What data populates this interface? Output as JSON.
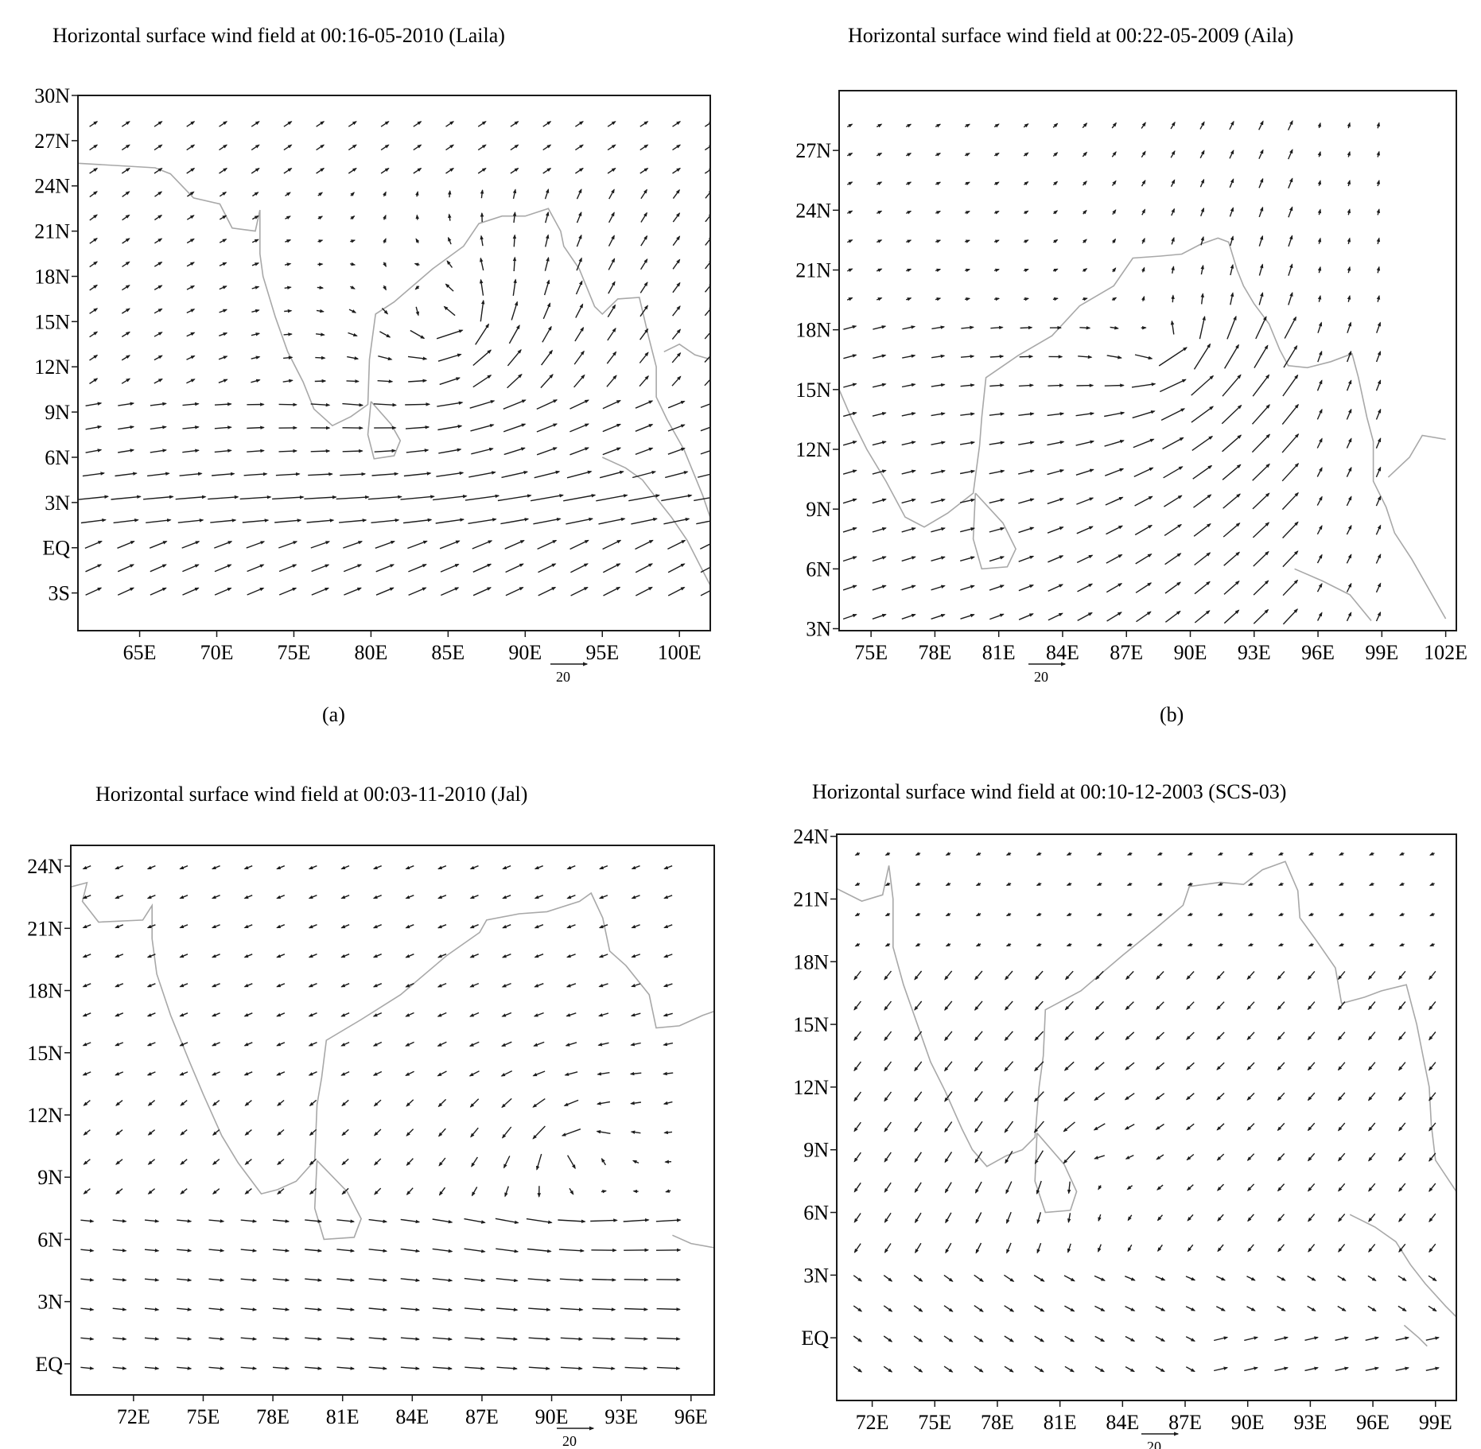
{
  "figure": {
    "panels": [
      {
        "id": "a",
        "title": "Horizontal surface wind field  at 00:16-05-2010 (Laila)",
        "label": "(a)",
        "reference_vector_label": "20"
      },
      {
        "id": "b",
        "title": "Horizontal surface wind field at 00:22-05-2009 (Aila)",
        "label": "(b)",
        "reference_vector_label": "20"
      },
      {
        "id": "c",
        "title": "Horizontal surface wind field at 00:03-11-2010 (Jal)",
        "label": "",
        "reference_vector_label": "20"
      },
      {
        "id": "d",
        "title": "Horizontal surface wind field at 00:10-12-2003 (SCS-03)",
        "label": "",
        "reference_vector_label": "20"
      }
    ]
  },
  "chart_data": [
    {
      "type": "vector_field",
      "title": "Horizontal surface wind field  at 00:16-05-2010 (Laila)",
      "xlim": [
        61,
        102
      ],
      "ylim": [
        -5.5,
        30
      ],
      "x_ticks": [
        {
          "v": 65,
          "label": "65E"
        },
        {
          "v": 70,
          "label": "70E"
        },
        {
          "v": 75,
          "label": "75E"
        },
        {
          "v": 80,
          "label": "80E"
        },
        {
          "v": 85,
          "label": "85E"
        },
        {
          "v": 90,
          "label": "90E"
        },
        {
          "v": 95,
          "label": "95E"
        },
        {
          "v": 100,
          "label": "100E"
        }
      ],
      "y_ticks": [
        {
          "v": 30,
          "label": "30N"
        },
        {
          "v": 27,
          "label": "27N"
        },
        {
          "v": 24,
          "label": "24N"
        },
        {
          "v": 21,
          "label": "21N"
        },
        {
          "v": 18,
          "label": "18N"
        },
        {
          "v": 15,
          "label": "15N"
        },
        {
          "v": 12,
          "label": "12N"
        },
        {
          "v": 9,
          "label": "9N"
        },
        {
          "v": 6,
          "label": "6N"
        },
        {
          "v": 3,
          "label": "3N"
        },
        {
          "v": 0,
          "label": "EQ"
        },
        {
          "v": -3,
          "label": "3S"
        }
      ],
      "grid": false,
      "reference_vector": {
        "magnitude": 20,
        "label": "20"
      },
      "cyclone_center": {
        "lon": 85,
        "lat": 15
      },
      "flow": "south-westerly cross-equatorial flow with cyclonic circulation over Bay of Bengal"
    },
    {
      "type": "vector_field",
      "title": "Horizontal surface wind field at 00:22-05-2009 (Aila)",
      "xlim": [
        73.5,
        102.5
      ],
      "ylim": [
        2.9,
        30
      ],
      "x_ticks": [
        {
          "v": 75,
          "label": "75E"
        },
        {
          "v": 78,
          "label": "78E"
        },
        {
          "v": 81,
          "label": "81E"
        },
        {
          "v": 84,
          "label": "84E"
        },
        {
          "v": 87,
          "label": "87E"
        },
        {
          "v": 90,
          "label": "90E"
        },
        {
          "v": 93,
          "label": "93E"
        },
        {
          "v": 96,
          "label": "96E"
        },
        {
          "v": 99,
          "label": "99E"
        },
        {
          "v": 102,
          "label": "102E"
        }
      ],
      "y_ticks": [
        {
          "v": 27,
          "label": "27N"
        },
        {
          "v": 24,
          "label": "24N"
        },
        {
          "v": 21,
          "label": "21N"
        },
        {
          "v": 18,
          "label": "18N"
        },
        {
          "v": 15,
          "label": "15N"
        },
        {
          "v": 12,
          "label": "12N"
        },
        {
          "v": 9,
          "label": "9N"
        },
        {
          "v": 6,
          "label": "6N"
        },
        {
          "v": 3,
          "label": "3N"
        }
      ],
      "grid": false,
      "reference_vector": {
        "magnitude": 20,
        "label": "20"
      },
      "cyclone_center": {
        "lon": 89,
        "lat": 17
      },
      "flow": "strong south-westerlies turning northward over the Bay of Bengal"
    },
    {
      "type": "vector_field",
      "title": "Horizontal surface wind field at 00:03-11-2010 (Jal)",
      "xlim": [
        69.3,
        97
      ],
      "ylim": [
        -1.5,
        25
      ],
      "x_ticks": [
        {
          "v": 72,
          "label": "72E"
        },
        {
          "v": 75,
          "label": "75E"
        },
        {
          "v": 78,
          "label": "78E"
        },
        {
          "v": 81,
          "label": "81E"
        },
        {
          "v": 84,
          "label": "84E"
        },
        {
          "v": 87,
          "label": "87E"
        },
        {
          "v": 90,
          "label": "90E"
        },
        {
          "v": 93,
          "label": "93E"
        },
        {
          "v": 96,
          "label": "96E"
        }
      ],
      "y_ticks": [
        {
          "v": 24,
          "label": "24N"
        },
        {
          "v": 21,
          "label": "21N"
        },
        {
          "v": 18,
          "label": "18N"
        },
        {
          "v": 15,
          "label": "15N"
        },
        {
          "v": 12,
          "label": "12N"
        },
        {
          "v": 9,
          "label": "9N"
        },
        {
          "v": 6,
          "label": "6N"
        },
        {
          "v": 3,
          "label": "3N"
        },
        {
          "v": 0,
          "label": "EQ"
        }
      ],
      "grid": false,
      "reference_vector": {
        "magnitude": 20,
        "label": "20"
      },
      "cyclone_center": {
        "lon": 91,
        "lat": 10
      },
      "flow": "easterlies over the Bay of Bengal with a vortex near the south-east"
    },
    {
      "type": "vector_field",
      "title": "Horizontal surface wind field at 00:10-12-2003 (SCS-03)",
      "xlim": [
        70.3,
        100
      ],
      "ylim": [
        -3,
        24.1
      ],
      "x_ticks": [
        {
          "v": 72,
          "label": "72E"
        },
        {
          "v": 75,
          "label": "75E"
        },
        {
          "v": 78,
          "label": "78E"
        },
        {
          "v": 81,
          "label": "81E"
        },
        {
          "v": 84,
          "label": "84E"
        },
        {
          "v": 87,
          "label": "87E"
        },
        {
          "v": 90,
          "label": "90E"
        },
        {
          "v": 93,
          "label": "93E"
        },
        {
          "v": 96,
          "label": "96E"
        },
        {
          "v": 99,
          "label": "99E"
        }
      ],
      "y_ticks": [
        {
          "v": 24,
          "label": "24N"
        },
        {
          "v": 21,
          "label": "21N"
        },
        {
          "v": 18,
          "label": "18N"
        },
        {
          "v": 15,
          "label": "15N"
        },
        {
          "v": 12,
          "label": "12N"
        },
        {
          "v": 9,
          "label": "9N"
        },
        {
          "v": 6,
          "label": "6N"
        },
        {
          "v": 3,
          "label": "3N"
        },
        {
          "v": 0,
          "label": "EQ"
        }
      ],
      "grid": false,
      "reference_vector": {
        "magnitude": 20,
        "label": "20"
      },
      "cyclone_center": {
        "lon": 82,
        "lat": 8
      },
      "flow": "north-easterlies over the Bay of Bengal turning south-east near the equator"
    }
  ],
  "colors": {
    "axis": "#1a1a1a",
    "arrow": "#1c1c1c",
    "coastline": "#a8a8a8"
  }
}
